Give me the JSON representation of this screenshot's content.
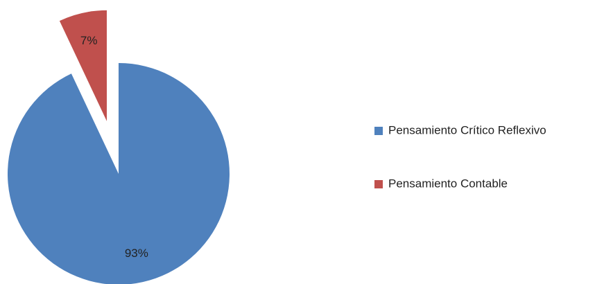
{
  "chart_data": {
    "type": "pie",
    "categories": [
      "Pensamiento Crítico Reflexivo",
      "Pensamiento Contable"
    ],
    "values": [
      93,
      7
    ],
    "value_labels": [
      "93%",
      "7%"
    ],
    "colors": [
      "#4f81bd",
      "#c0504d"
    ],
    "exploded": [
      false,
      true
    ],
    "legend": "right"
  }
}
